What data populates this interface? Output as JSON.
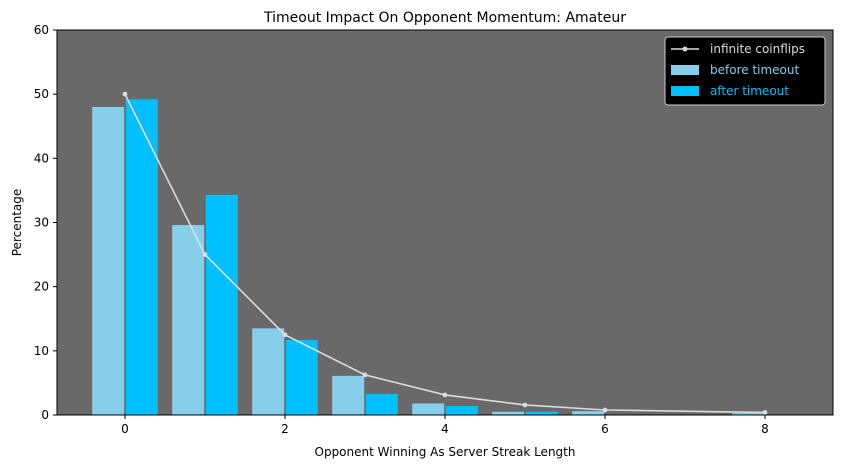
{
  "chart_data": {
    "type": "bar",
    "title": "Timeout Impact On Opponent Momentum: Amateur",
    "xlabel": "Opponent Winning As Server Streak Length",
    "ylabel": "Percentage",
    "xlim": [
      -0.85,
      8.85
    ],
    "ylim": [
      0,
      60
    ],
    "xticks": [
      0,
      2,
      4,
      6,
      8
    ],
    "yticks": [
      0,
      10,
      20,
      30,
      40,
      50,
      60
    ],
    "grid": false,
    "legend_position": "top-right",
    "background_color": "#696969",
    "categories": [
      0,
      1,
      2,
      3,
      4,
      5,
      6,
      7,
      8
    ],
    "series": [
      {
        "name": "before timeout",
        "kind": "bar",
        "color": "#87CEEB",
        "x": [
          0,
          1,
          2,
          3,
          4,
          5,
          6,
          7,
          8
        ],
        "values": [
          48.0,
          29.6,
          13.5,
          6.1,
          1.8,
          0.5,
          0.6,
          0.0,
          0.3
        ]
      },
      {
        "name": "after timeout",
        "kind": "bar",
        "color": "#00BFFF",
        "x": [
          0,
          1,
          2,
          3,
          4,
          5,
          6,
          7,
          8
        ],
        "values": [
          49.2,
          34.3,
          11.7,
          3.3,
          1.4,
          0.5,
          0.0,
          0.0,
          0.0
        ]
      },
      {
        "name": "infinite coinflips",
        "kind": "line",
        "color": "#DCDCDC",
        "x": [
          0,
          1,
          2,
          3,
          4,
          5,
          6,
          8
        ],
        "values": [
          50,
          25,
          12.5,
          6.25,
          3.125,
          1.5625,
          0.78,
          0.39
        ]
      }
    ]
  }
}
